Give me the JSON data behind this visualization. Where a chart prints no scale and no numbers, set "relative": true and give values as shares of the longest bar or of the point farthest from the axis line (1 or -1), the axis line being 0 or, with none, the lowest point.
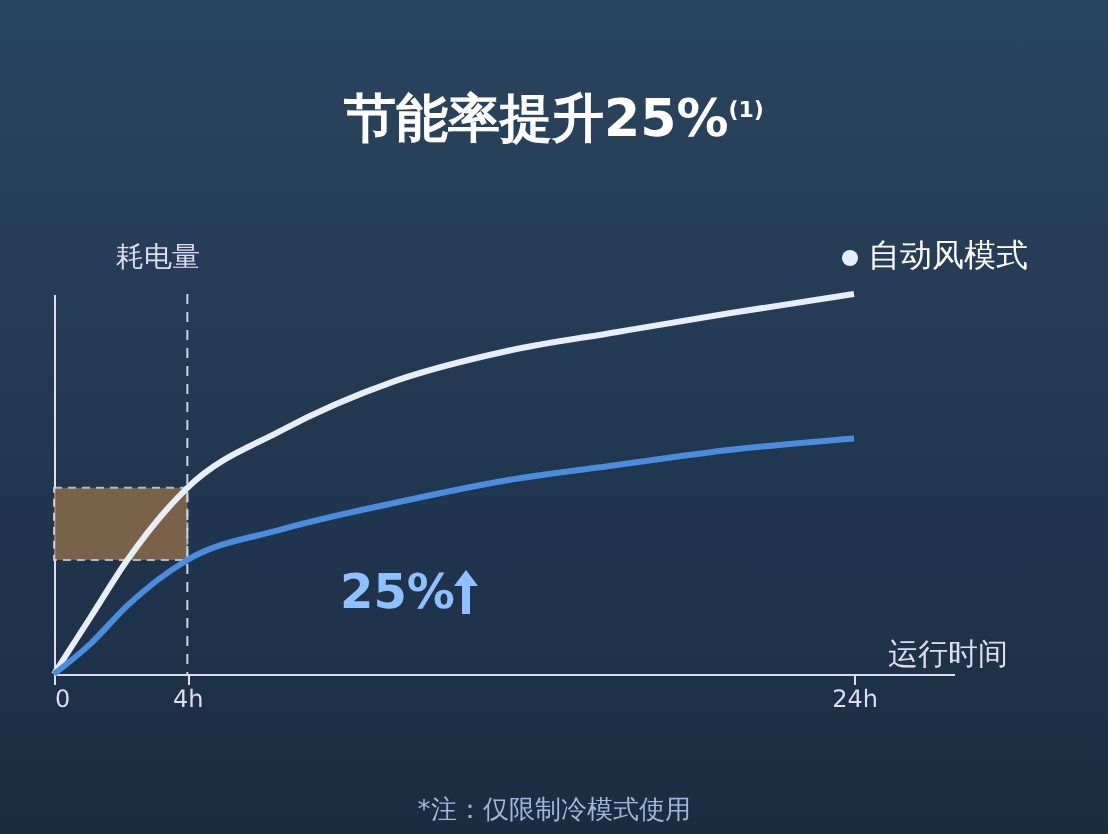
{
  "chart_data": {
    "type": "line",
    "relative": true,
    "title": "节能率提升25%$^{(1)}$",
    "ylabel": "耗电量",
    "xlabel": "运行时间",
    "xlim": [
      0,
      27
    ],
    "xticks": [
      0,
      {
        "value": 4,
        "label": "4h"
      },
      {
        "value": 24,
        "label": "24h"
      }
    ],
    "series": [
      {
        "name": "自动风模式",
        "color": "#e8eef5",
        "x": [
          0,
          1.1,
          2.2,
          4,
          6.8,
          10.2,
          13.6,
          16.9,
          20.3,
          24
        ],
        "values": [
          0,
          0.15,
          0.3,
          0.49,
          0.64,
          0.77,
          0.85,
          0.9,
          0.95,
          1
        ]
      },
      {
        "color": "#4a8de0",
        "x": [
          0,
          1.1,
          2.2,
          4,
          6.8,
          10.2,
          13.6,
          16.9,
          20.3,
          24
        ],
        "values": [
          0,
          0.08,
          0.18,
          0.3,
          0.38,
          0.45,
          0.51,
          0.55,
          0.59,
          0.62
        ]
      }
    ],
    "ref_lines": [
      {
        "axis": "x",
        "value": 4,
        "line_style": "dashed",
        "color": "#c8d4e0"
      }
    ],
    "bands": [
      {
        "axis": "y",
        "from": 0.3,
        "to": 0.49,
        "color": "#8a6a48"
      }
    ],
    "legend": "top right",
    "line_style": "solid",
    "annotations": [
      "25%",
      "*注：仅限制冷模式使用"
    ]
  }
}
